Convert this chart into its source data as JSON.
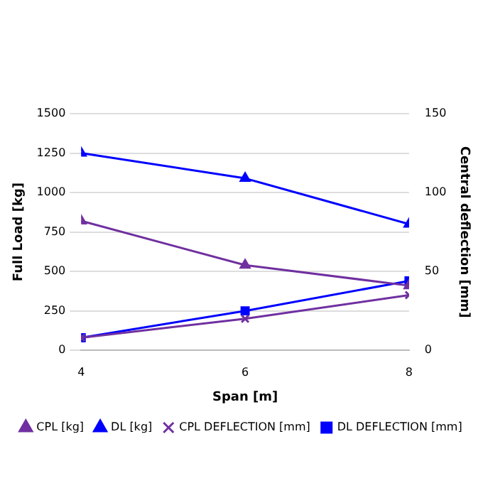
{
  "chart_data": {
    "type": "line",
    "xlabel": "Span [m]",
    "ylabel": "Full Load [kg]",
    "y2label": "Central deflection [mm]",
    "x": [
      4,
      6,
      8
    ],
    "xlim": [
      4,
      8
    ],
    "xticks": [
      4,
      6,
      8
    ],
    "ylim": [
      0,
      1500
    ],
    "yticks": [
      0,
      250,
      500,
      750,
      1000,
      1250,
      1500
    ],
    "y2lim": [
      0,
      150
    ],
    "y2ticks": [
      0,
      50,
      100,
      150
    ],
    "series": [
      {
        "name": "CPL [kg]",
        "color": "#7030a0",
        "values": [
          820,
          540,
          410
        ],
        "marker": "triangle"
      },
      {
        "name": "DL [kg]",
        "color": "#0000ff",
        "values": [
          1250,
          1090,
          800
        ],
        "marker": "triangle"
      },
      {
        "name": "CPL DEFLECTION [mm]",
        "color": "#7030a0",
        "values": [
          8,
          20,
          35
        ],
        "axis": "y2",
        "marker": "cross"
      },
      {
        "name": "DL DEFLECTION [mm]",
        "color": "#0000ff",
        "values": [
          8,
          25,
          44
        ],
        "axis": "y2",
        "marker": "square"
      }
    ],
    "grid": "y",
    "legend": "bottom",
    "line_style": "solid"
  }
}
